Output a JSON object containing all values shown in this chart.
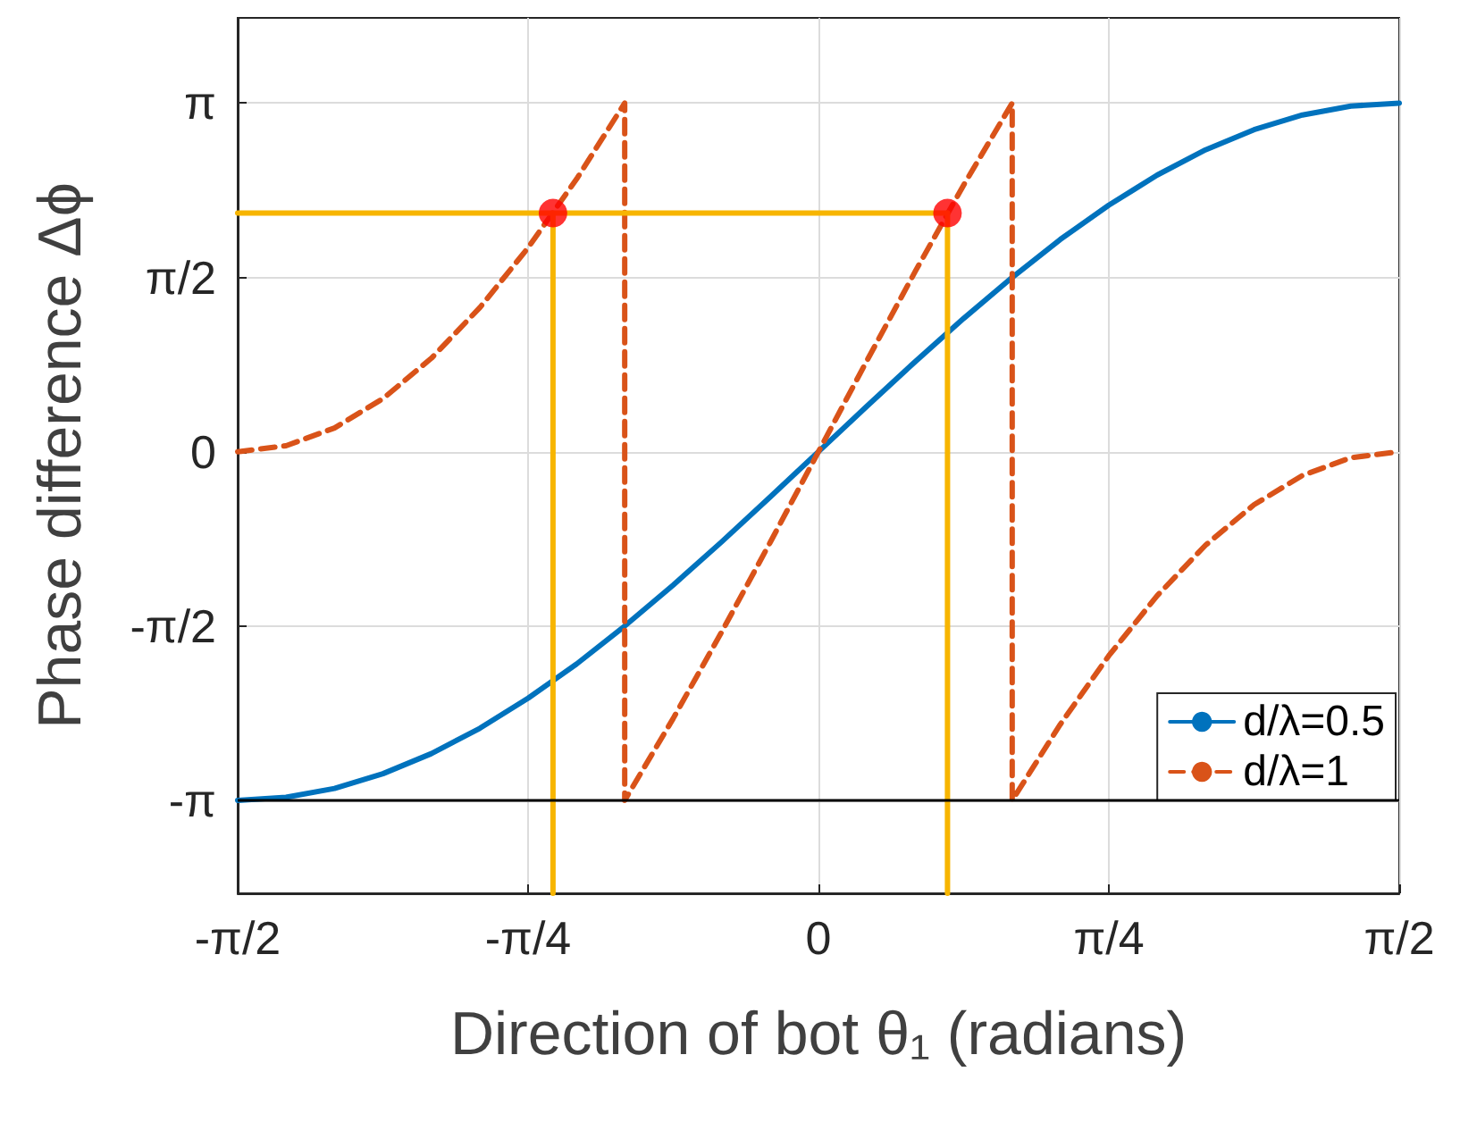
{
  "chart_data": {
    "type": "line",
    "xlabel": "Direction of bot θ₁ (radians)",
    "ylabel": "Phase difference Δϕ",
    "xlim": [
      -1.5708,
      1.5708
    ],
    "ylim": [
      -3.98,
      3.91
    ],
    "xticks": [
      {
        "value": -1.5708,
        "label": "-π/2"
      },
      {
        "value": -0.7854,
        "label": "-π/4"
      },
      0,
      {
        "value": 0.7854,
        "label": "π/4"
      },
      {
        "value": 1.5708,
        "label": "π/2"
      }
    ],
    "yticks": [
      {
        "value": -3.1416,
        "label": "-π"
      },
      {
        "value": -1.5708,
        "label": "-π/2"
      },
      0,
      {
        "value": 1.5708,
        "label": "π/2"
      },
      {
        "value": 3.1416,
        "label": "π"
      }
    ],
    "grid": true,
    "legend": "bottom right",
    "ref_lines": [
      {
        "axis": "y",
        "value": -3.1416,
        "color": "#000000"
      }
    ],
    "series": [
      {
        "name": "d/λ=0.5",
        "type": "line",
        "color": "#0072bd",
        "line_style": "solid",
        "marker": "none",
        "x": [
          -1.5708,
          -1.44,
          -1.309,
          -1.178,
          -1.047,
          -0.916,
          -0.785,
          -0.654,
          -0.524,
          -0.393,
          -0.262,
          -0.131,
          0,
          0.131,
          0.262,
          0.393,
          0.524,
          0.654,
          0.785,
          0.916,
          1.047,
          1.178,
          1.309,
          1.44,
          1.5708
        ],
        "values": [
          -3.142,
          -3.115,
          -3.035,
          -2.902,
          -2.721,
          -2.493,
          -2.221,
          -1.913,
          -1.571,
          -1.202,
          -0.813,
          -0.41,
          0,
          0.41,
          0.813,
          1.202,
          1.571,
          1.913,
          2.221,
          2.493,
          2.721,
          2.902,
          3.035,
          3.115,
          3.142
        ]
      },
      {
        "name": "d/λ=1",
        "type": "line",
        "color": "#d95319",
        "line_style": "dashed",
        "marker": "none",
        "x": [
          -1.5708,
          -1.44,
          -1.309,
          -1.178,
          -1.047,
          -0.916,
          -0.785,
          -0.654,
          -0.524,
          -0.524,
          -0.393,
          -0.262,
          -0.131,
          0,
          0.131,
          0.262,
          0.393,
          0.524,
          0.524,
          0.654,
          0.785,
          0.916,
          1.047,
          1.178,
          1.309,
          1.44,
          1.5708
        ],
        "values": [
          0,
          0.054,
          0.214,
          0.478,
          0.842,
          1.298,
          1.84,
          2.458,
          3.142,
          -3.142,
          -2.405,
          -1.626,
          -0.82,
          0,
          0.82,
          1.626,
          2.405,
          3.142,
          -3.142,
          -2.458,
          -1.84,
          -1.298,
          -0.842,
          -0.478,
          -0.214,
          -0.054,
          0
        ]
      },
      {
        "type": "line",
        "color": "#f7b500",
        "line_style": "solid",
        "marker": "none",
        "x": [
          -1.5708,
          0.349
        ],
        "values": [
          2.15,
          2.15
        ]
      },
      {
        "type": "line",
        "color": "#f7b500",
        "line_style": "solid",
        "marker": "none",
        "x": [
          -0.718,
          -0.718
        ],
        "values": [
          2.15,
          -3.98
        ]
      },
      {
        "type": "line",
        "color": "#f7b500",
        "line_style": "solid",
        "marker": "none",
        "x": [
          0.349,
          0.349
        ],
        "values": [
          2.15,
          -3.98
        ]
      },
      {
        "type": "scatter",
        "color": "#ff0000",
        "marker": "circle",
        "x": [
          -0.718,
          0.349
        ],
        "values": [
          2.15,
          2.15
        ]
      }
    ]
  }
}
